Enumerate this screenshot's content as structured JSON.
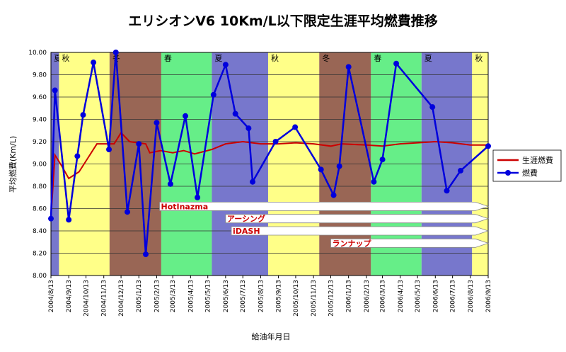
{
  "chart_data": {
    "type": "line",
    "title": "エリシオンV6 10Km/L以下限定生涯平均燃費推移",
    "xlabel": "給油年月日",
    "ylabel": "平均燃費(Km/L)",
    "ylim": [
      8.0,
      10.0
    ],
    "ytick_step": 0.2,
    "x_ticks": [
      "2004/8/13",
      "2004/9/13",
      "2004/10/13",
      "2004/11/13",
      "2004/12/13",
      "2005/1/13",
      "2005/2/13",
      "2005/3/13",
      "2005/4/13",
      "2005/5/13",
      "2005/6/13",
      "2005/7/13",
      "2005/8/13",
      "2005/9/13",
      "2005/10/13",
      "2005/11/13",
      "2005/12/13",
      "2006/1/13",
      "2006/2/13",
      "2006/3/13",
      "2006/4/13",
      "2006/5/13",
      "2006/6/13",
      "2006/7/13",
      "2006/8/13",
      "2006/9/13"
    ],
    "x_range": [
      "2004/8/13",
      "2006/9/13"
    ],
    "grid": true,
    "legend_position": "right",
    "seasons": [
      {
        "label": "夏",
        "start": "2004/8/13",
        "end": "2004/8/27",
        "color": "#7777cc"
      },
      {
        "label": "秋",
        "start": "2004/8/27",
        "end": "2004/11/23",
        "color": "#ffff88"
      },
      {
        "label": "冬",
        "start": "2004/11/23",
        "end": "2005/2/21",
        "color": "#996655"
      },
      {
        "label": "春",
        "start": "2005/2/21",
        "end": "2005/5/20",
        "color": "#66ee88"
      },
      {
        "label": "夏",
        "start": "2005/5/20",
        "end": "2005/8/26",
        "color": "#7777cc"
      },
      {
        "label": "秋",
        "start": "2005/8/26",
        "end": "2005/11/23",
        "color": "#ffff88"
      },
      {
        "label": "冬",
        "start": "2005/11/23",
        "end": "2006/2/21",
        "color": "#996655"
      },
      {
        "label": "春",
        "start": "2006/2/21",
        "end": "2006/5/20",
        "color": "#66ee88"
      },
      {
        "label": "夏",
        "start": "2006/5/20",
        "end": "2006/8/16",
        "color": "#7777cc"
      },
      {
        "label": "秋",
        "start": "2006/8/16",
        "end": "2006/9/13",
        "color": "#ffff88"
      }
    ],
    "series": [
      {
        "name": "生涯燃費",
        "color": "#cc0000",
        "marker": "none",
        "points": [
          [
            "2004/8/13",
            8.52
          ],
          [
            "2004/8/20",
            9.08
          ],
          [
            "2004/9/1",
            8.98
          ],
          [
            "2004/9/13",
            8.87
          ],
          [
            "2004/10/1",
            8.93
          ],
          [
            "2004/11/1",
            9.18
          ],
          [
            "2004/12/1",
            9.18
          ],
          [
            "2004/12/13",
            9.28
          ],
          [
            "2004/12/28",
            9.2
          ],
          [
            "2005/1/25",
            9.18
          ],
          [
            "2005/2/1",
            9.1
          ],
          [
            "2005/2/20",
            9.12
          ],
          [
            "2005/3/13",
            9.1
          ],
          [
            "2005/4/1",
            9.12
          ],
          [
            "2005/4/20",
            9.09
          ],
          [
            "2005/5/20",
            9.13
          ],
          [
            "2005/6/13",
            9.18
          ],
          [
            "2005/7/13",
            9.2
          ],
          [
            "2005/8/13",
            9.18
          ],
          [
            "2005/9/13",
            9.18
          ],
          [
            "2005/10/13",
            9.19
          ],
          [
            "2005/11/13",
            9.18
          ],
          [
            "2005/12/13",
            9.16
          ],
          [
            "2006/1/1",
            9.18
          ],
          [
            "2006/2/13",
            9.17
          ],
          [
            "2006/3/13",
            9.16
          ],
          [
            "2006/4/13",
            9.18
          ],
          [
            "2006/5/13",
            9.19
          ],
          [
            "2006/6/13",
            9.2
          ],
          [
            "2006/7/13",
            9.19
          ],
          [
            "2006/8/13",
            9.17
          ],
          [
            "2006/9/13",
            9.17
          ]
        ]
      },
      {
        "name": "燃費",
        "color": "#0000dd",
        "marker": "circle",
        "points": [
          [
            "2004/8/13",
            8.51
          ],
          [
            "2004/8/20",
            9.66
          ],
          [
            "2004/9/13",
            8.5
          ],
          [
            "2004/9/28",
            9.07
          ],
          [
            "2004/10/8",
            9.44
          ],
          [
            "2004/10/26",
            9.91
          ],
          [
            "2004/11/22",
            9.13
          ],
          [
            "2004/12/4",
            10.0
          ],
          [
            "2004/12/24",
            8.57
          ],
          [
            "2005/1/13",
            9.18
          ],
          [
            "2005/1/25",
            8.19
          ],
          [
            "2005/2/13",
            9.37
          ],
          [
            "2005/3/9",
            8.82
          ],
          [
            "2005/4/4",
            9.43
          ],
          [
            "2005/4/25",
            8.7
          ],
          [
            "2005/5/23",
            9.62
          ],
          [
            "2005/6/13",
            9.89
          ],
          [
            "2005/6/30",
            9.45
          ],
          [
            "2005/7/23",
            9.32
          ],
          [
            "2005/7/30",
            8.84
          ],
          [
            "2005/9/8",
            9.2
          ],
          [
            "2005/10/12",
            9.33
          ],
          [
            "2005/11/26",
            8.95
          ],
          [
            "2005/12/18",
            8.72
          ],
          [
            "2005/12/28",
            8.98
          ],
          [
            "2006/1/13",
            9.87
          ],
          [
            "2006/2/26",
            8.84
          ],
          [
            "2006/3/13",
            9.04
          ],
          [
            "2006/4/6",
            9.9
          ],
          [
            "2006/6/8",
            9.51
          ],
          [
            "2006/7/3",
            8.76
          ],
          [
            "2006/7/27",
            8.94
          ],
          [
            "2006/9/13",
            9.16
          ]
        ]
      }
    ],
    "annotations": [
      {
        "label": "HotInazma",
        "y": 8.62,
        "start": "2005/2/18",
        "end": "2006/9/13"
      },
      {
        "label": "アーシング",
        "y": 8.51,
        "start": "2005/6/13",
        "end": "2006/9/13"
      },
      {
        "label": "iDASH",
        "y": 8.4,
        "start": "2005/6/23",
        "end": "2006/9/13"
      },
      {
        "label": "ランナップ",
        "y": 8.29,
        "start": "2005/12/13",
        "end": "2006/9/13"
      }
    ]
  }
}
